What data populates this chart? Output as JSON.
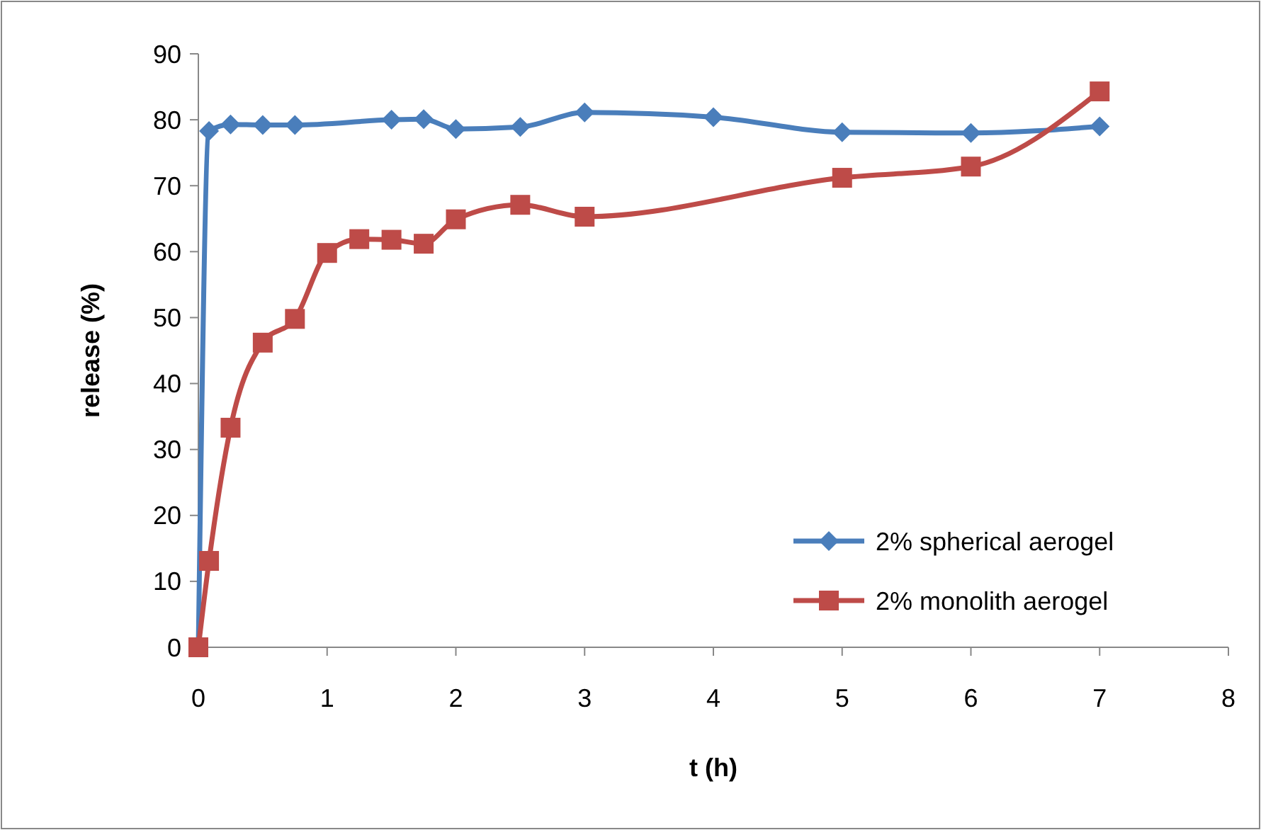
{
  "chart_data": {
    "type": "line",
    "xlabel": "t (h)",
    "ylabel": "release (%)",
    "xlim": [
      0,
      8
    ],
    "xticks": [
      0,
      1,
      2,
      3,
      4,
      5,
      6,
      7,
      8
    ],
    "ylim": [
      0,
      90
    ],
    "yticks": [
      0,
      10,
      20,
      30,
      40,
      50,
      60,
      70,
      80,
      90
    ],
    "grid": false,
    "legend": "bottom right",
    "series": [
      {
        "name": "2% spherical aerogel",
        "color": "#4a7ebb",
        "marker": "diamond",
        "x": [
          0,
          0.083,
          0.25,
          0.5,
          0.75,
          1.5,
          1.75,
          2,
          2.5,
          3,
          4,
          5,
          6,
          7
        ],
        "values": [
          0,
          78.3,
          79.3,
          79.2,
          79.2,
          80,
          80.1,
          78.6,
          78.9,
          81.1,
          80.4,
          78.1,
          78,
          79
        ]
      },
      {
        "name": "2% monolith aerogel",
        "color": "#be4b48",
        "marker": "square",
        "x": [
          0,
          0.083,
          0.25,
          0.5,
          0.75,
          1,
          1.25,
          1.5,
          1.75,
          2,
          2.5,
          3,
          5,
          6,
          7
        ],
        "values": [
          0,
          13.1,
          33.3,
          46.2,
          49.8,
          59.8,
          61.9,
          61.8,
          61.2,
          64.9,
          67.1,
          65.3,
          71.2,
          72.9,
          84.3
        ]
      }
    ]
  }
}
